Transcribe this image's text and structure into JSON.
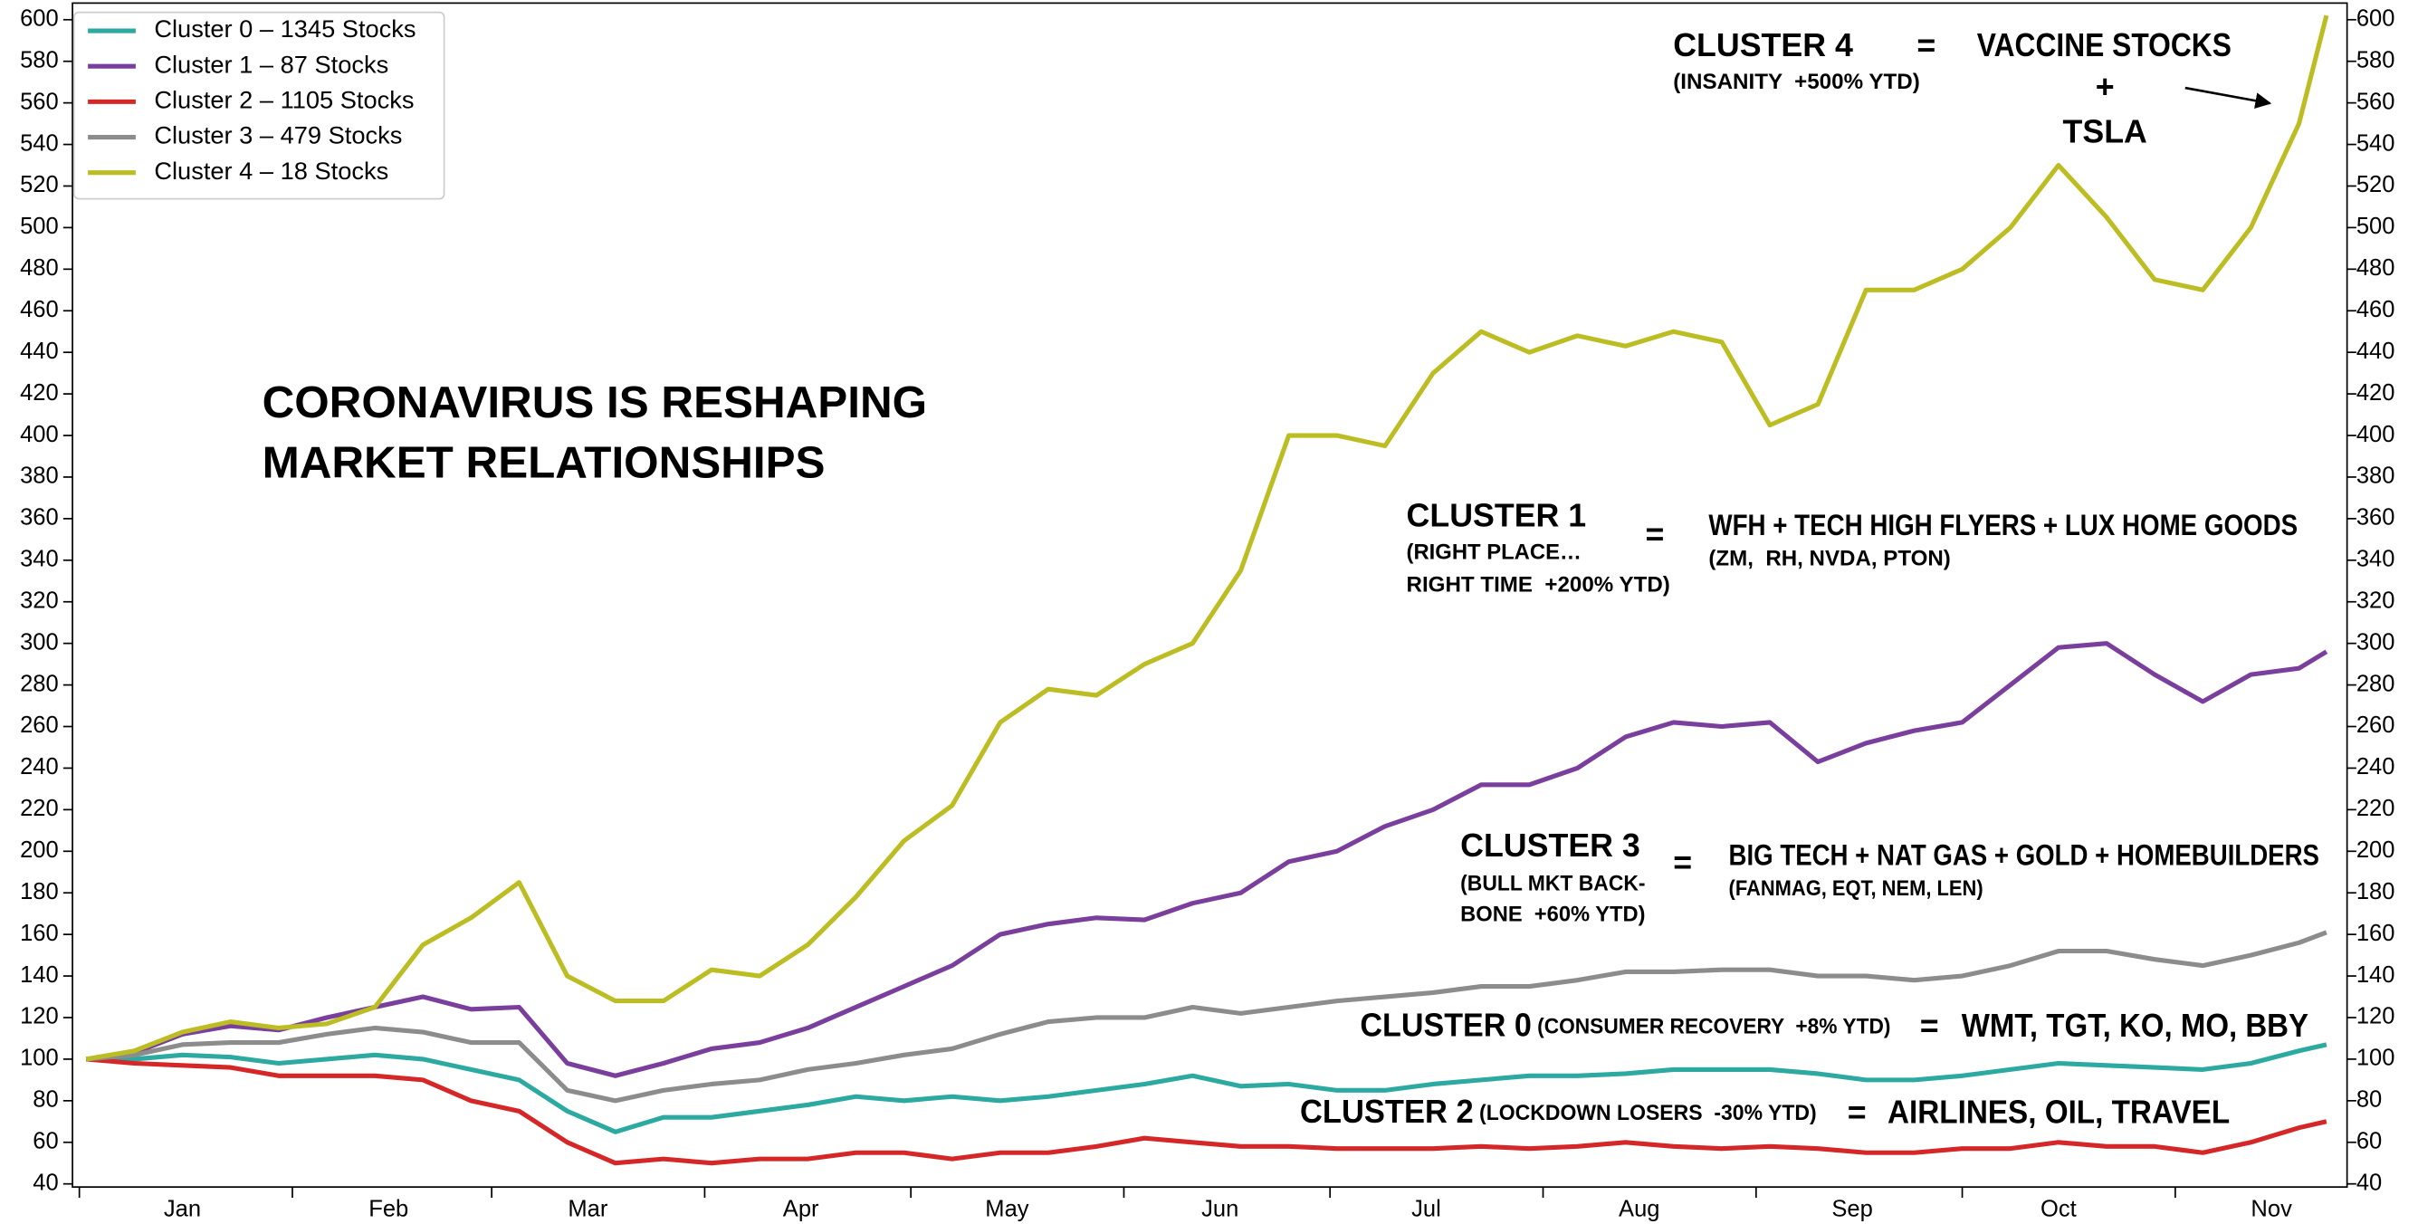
{
  "chart_data": {
    "type": "line",
    "title": [
      "CORONAVIRUS IS RESHAPING",
      "MARKET RELATIONSHIPS"
    ],
    "x": [
      2,
      9,
      16,
      23,
      30,
      37,
      44,
      51,
      58,
      65,
      72,
      79,
      86,
      93,
      100,
      107,
      114,
      121,
      128,
      135,
      142,
      149,
      156,
      163,
      170,
      177,
      184,
      191,
      198,
      205,
      212,
      219,
      226,
      233,
      240,
      247,
      254,
      261,
      268,
      275,
      282,
      289,
      296,
      303,
      310,
      317,
      324,
      328
    ],
    "xlim": [
      0,
      331
    ],
    "xticks": [
      {
        "value": 16,
        "label": "Jan"
      },
      {
        "value": 46,
        "label": "Feb"
      },
      {
        "value": 75,
        "label": "Mar"
      },
      {
        "value": 106,
        "label": "Apr"
      },
      {
        "value": 136,
        "label": "May"
      },
      {
        "value": 167,
        "label": "Jun"
      },
      {
        "value": 197,
        "label": "Jul"
      },
      {
        "value": 228,
        "label": "Aug"
      },
      {
        "value": 259,
        "label": "Sep"
      },
      {
        "value": 289,
        "label": "Oct"
      },
      {
        "value": 320,
        "label": "Nov"
      }
    ],
    "xminor_ticks": [
      1,
      32,
      61,
      92,
      122,
      153,
      183,
      214,
      245,
      275,
      306
    ],
    "ylim": [
      38.5,
      608
    ],
    "yticks": [
      40,
      60,
      80,
      100,
      120,
      140,
      160,
      180,
      200,
      220,
      240,
      260,
      280,
      300,
      320,
      340,
      360,
      380,
      400,
      420,
      440,
      460,
      480,
      500,
      520,
      540,
      560,
      580,
      600
    ],
    "right_axis_labels": true,
    "grid": false,
    "legend": "upper left",
    "series": [
      {
        "name": "Cluster 0 – 1345 Stocks",
        "color": "#2ca9a1",
        "values": [
          100,
          100,
          102,
          101,
          98,
          100,
          102,
          100,
          95,
          90,
          75,
          65,
          72,
          72,
          75,
          78,
          82,
          80,
          82,
          80,
          82,
          85,
          88,
          92,
          87,
          88,
          85,
          85,
          88,
          90,
          92,
          92,
          93,
          95,
          95,
          95,
          93,
          90,
          90,
          92,
          95,
          98,
          97,
          96,
          95,
          98,
          104,
          107
        ]
      },
      {
        "name": "Cluster 1 – 87 Stocks",
        "color": "#7a3f9d",
        "values": [
          100,
          103,
          112,
          116,
          114,
          120,
          125,
          130,
          124,
          125,
          98,
          92,
          98,
          105,
          108,
          115,
          125,
          135,
          145,
          160,
          165,
          168,
          167,
          175,
          180,
          195,
          200,
          212,
          220,
          232,
          232,
          240,
          255,
          262,
          260,
          262,
          243,
          252,
          258,
          262,
          280,
          298,
          300,
          285,
          272,
          285,
          288,
          296
        ]
      },
      {
        "name": "Cluster 2 – 1105 Stocks",
        "color": "#d62728",
        "values": [
          100,
          98,
          97,
          96,
          92,
          92,
          92,
          90,
          80,
          75,
          60,
          50,
          52,
          50,
          52,
          52,
          55,
          55,
          52,
          55,
          55,
          58,
          62,
          60,
          58,
          58,
          57,
          57,
          57,
          58,
          57,
          58,
          60,
          58,
          57,
          58,
          57,
          55,
          55,
          57,
          57,
          60,
          58,
          58,
          55,
          60,
          67,
          70
        ]
      },
      {
        "name": "Cluster 3 – 479 Stocks",
        "color": "#8c8c8c",
        "values": [
          100,
          102,
          107,
          108,
          108,
          112,
          115,
          113,
          108,
          108,
          85,
          80,
          85,
          88,
          90,
          95,
          98,
          102,
          105,
          112,
          118,
          120,
          120,
          125,
          122,
          125,
          128,
          130,
          132,
          135,
          135,
          138,
          142,
          142,
          143,
          143,
          140,
          140,
          138,
          140,
          145,
          152,
          152,
          148,
          145,
          150,
          156,
          161
        ]
      },
      {
        "name": "Cluster 4 – 18 Stocks",
        "color": "#bcbd22",
        "values": [
          100,
          104,
          113,
          118,
          115,
          117,
          125,
          155,
          168,
          185,
          140,
          128,
          128,
          143,
          140,
          155,
          178,
          205,
          222,
          262,
          278,
          275,
          290,
          300,
          335,
          400,
          400,
          395,
          430,
          450,
          440,
          448,
          443,
          450,
          445,
          405,
          415,
          470,
          470,
          480,
          500,
          530,
          505,
          475,
          470,
          500,
          550,
          602
        ]
      }
    ],
    "annotations": [
      "CLUSTER 4",
      "=",
      "VACCINE STOCKS",
      "+",
      "TSLA",
      "(INSANITY  +500% YTD)",
      "CLUSTER 1",
      "(RIGHT PLACE…",
      "RIGHT TIME  +200% YTD)",
      "=",
      "WFH + TECH HIGH FLYERS + LUX HOME GOODS",
      "(ZM,  RH, NVDA, PTON)",
      "CLUSTER 3",
      "(BULL MKT BACK-",
      "BONE  +60% YTD)",
      "=",
      "BIG TECH + NAT GAS + GOLD + HOMEBUILDERS",
      "(FANMAG, EQT, NEM, LEN)",
      "CLUSTER 0",
      " (CONSUMER RECOVERY  +8% YTD)",
      "=",
      "WMT, TGT, KO, MO, BBY",
      "CLUSTER 2",
      " (LOCKDOWN LOSERS  -30% YTD)",
      "=",
      "AIRLINES, OIL, TRAVEL"
    ]
  }
}
